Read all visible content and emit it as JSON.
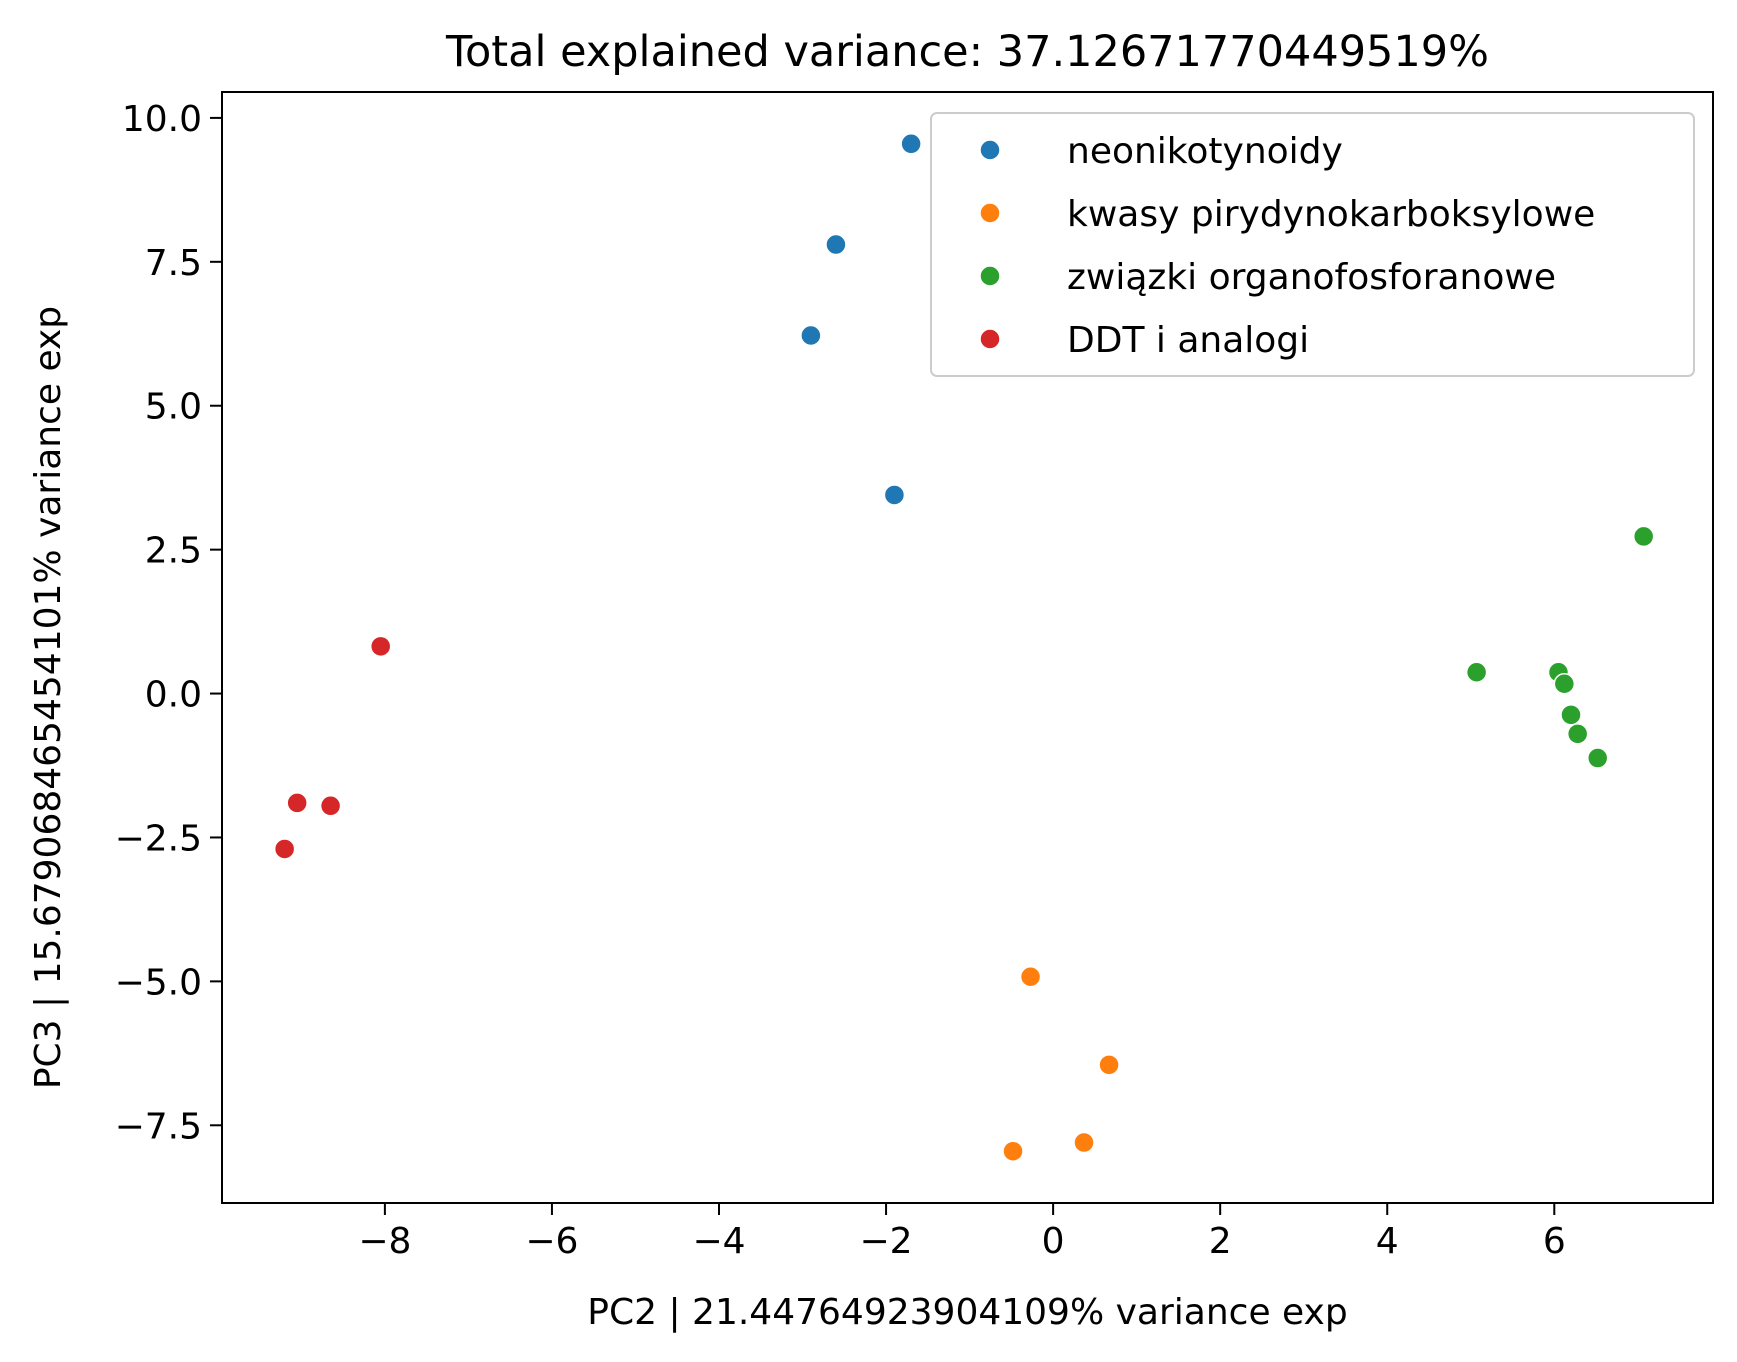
{
  "chart_data": {
    "type": "scatter",
    "title": "Total explained variance: 37.12671770449519%",
    "xlabel": "PC2    |    21.44764923904109% variance exp",
    "ylabel": "PC3    |    15.67906846545410​1% variance exp",
    "xlim": [
      -9.95,
      7.9
    ],
    "ylim": [
      -8.85,
      10.45
    ],
    "xticks": [
      -8,
      -6,
      -4,
      -2,
      0,
      2,
      4,
      6
    ],
    "xtick_labels": [
      "−8",
      "−6",
      "−4",
      "−2",
      "0",
      "2",
      "4",
      "6"
    ],
    "yticks": [
      -7.5,
      -5.0,
      -2.5,
      0.0,
      2.5,
      5.0,
      7.5,
      10.0
    ],
    "ytick_labels": [
      "−7.5",
      "−5.0",
      "−2.5",
      "0.0",
      "2.5",
      "5.0",
      "7.5",
      "10.0"
    ],
    "grid": false,
    "legend_position": "top-right",
    "series": [
      {
        "name": "neonikotynoidy",
        "color": "#1f77b4",
        "x": [
          -1.7,
          -2.6,
          -2.9,
          -1.9
        ],
        "y": [
          9.55,
          7.8,
          6.22,
          3.45
        ]
      },
      {
        "name": "kwasy pirydynokarboksylowe",
        "color": "#ff7f0e",
        "x": [
          -0.27,
          0.67,
          0.37,
          -0.48
        ],
        "y": [
          -4.92,
          -6.45,
          -7.8,
          -7.95
        ]
      },
      {
        "name": "związki organofosforanowe",
        "color": "#2ca02c",
        "x": [
          7.07,
          5.07,
          6.05,
          6.12,
          6.2,
          6.28,
          6.52
        ],
        "y": [
          2.73,
          0.37,
          0.37,
          0.17,
          -0.37,
          -0.7,
          -1.12
        ]
      },
      {
        "name": "DDT i analogi",
        "color": "#d62728",
        "x": [
          -8.05,
          -9.05,
          -8.65,
          -9.2
        ],
        "y": [
          0.82,
          -1.9,
          -1.95,
          -2.7
        ]
      }
    ]
  }
}
